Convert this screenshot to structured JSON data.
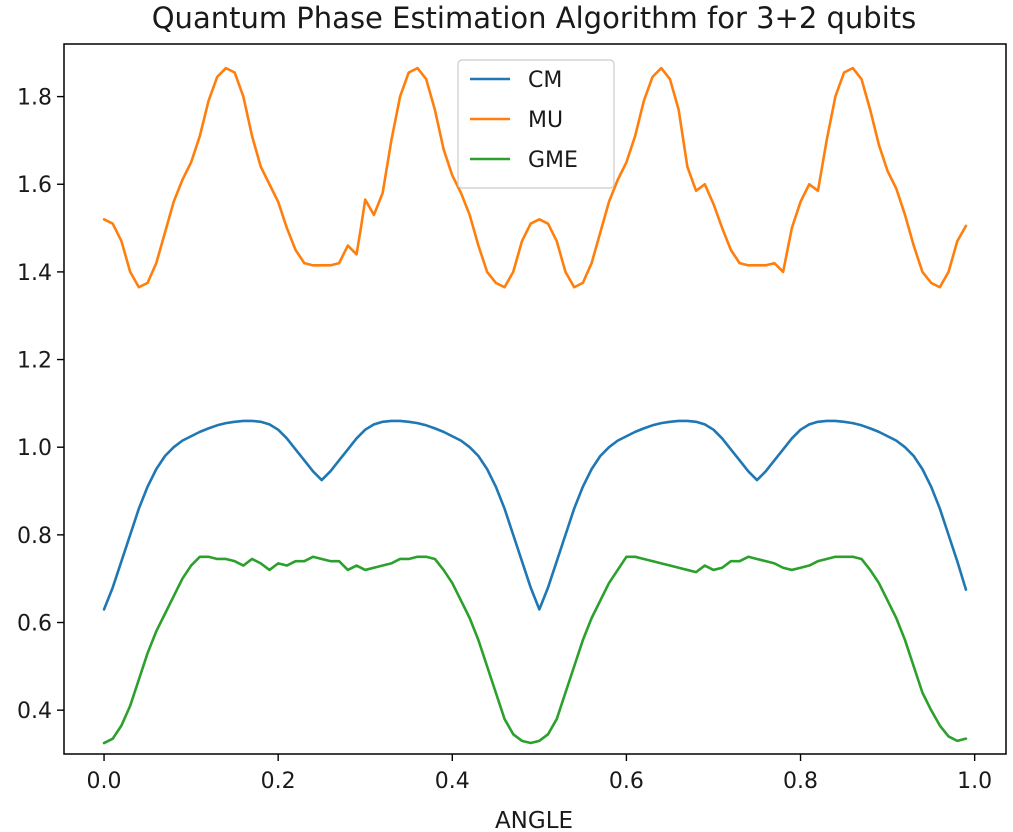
{
  "chart_data": {
    "type": "line",
    "title": "Quantum Phase Estimation Algorithm for 3+2 qubits",
    "xlabel": "ANGLE",
    "ylabel": "",
    "xlim": [
      -0.046,
      1.036
    ],
    "ylim": [
      0.3,
      1.92
    ],
    "xticks": [
      0.0,
      0.2,
      0.4,
      0.6,
      0.8,
      1.0
    ],
    "xtick_labels": [
      "0.0",
      "0.2",
      "0.4",
      "0.6",
      "0.8",
      "1.0"
    ],
    "yticks": [
      0.4,
      0.6,
      0.8,
      1.0,
      1.2,
      1.4,
      1.6,
      1.8
    ],
    "ytick_labels": [
      "0.4",
      "0.6",
      "0.8",
      "1.0",
      "1.2",
      "1.4",
      "1.6",
      "1.8"
    ],
    "grid": false,
    "legend_position": "top-center",
    "series": [
      {
        "name": "CM",
        "color": "#1f77b4",
        "x": [
          0.0,
          0.01,
          0.02,
          0.03,
          0.04,
          0.05,
          0.06,
          0.07,
          0.08,
          0.09,
          0.1,
          0.11,
          0.12,
          0.13,
          0.14,
          0.15,
          0.16,
          0.17,
          0.18,
          0.19,
          0.2,
          0.21,
          0.22,
          0.23,
          0.24,
          0.25,
          0.26,
          0.27,
          0.28,
          0.29,
          0.3,
          0.31,
          0.32,
          0.33,
          0.34,
          0.35,
          0.36,
          0.37,
          0.38,
          0.39,
          0.4,
          0.41,
          0.42,
          0.43,
          0.44,
          0.45,
          0.46,
          0.47,
          0.48,
          0.49,
          0.5,
          0.51,
          0.52,
          0.53,
          0.54,
          0.55,
          0.56,
          0.57,
          0.58,
          0.59,
          0.6,
          0.61,
          0.62,
          0.63,
          0.64,
          0.65,
          0.66,
          0.67,
          0.68,
          0.69,
          0.7,
          0.71,
          0.72,
          0.73,
          0.74,
          0.75,
          0.76,
          0.77,
          0.78,
          0.79,
          0.8,
          0.81,
          0.82,
          0.83,
          0.84,
          0.85,
          0.86,
          0.87,
          0.88,
          0.89,
          0.9,
          0.91,
          0.92,
          0.93,
          0.94,
          0.95,
          0.96,
          0.97,
          0.98,
          0.99
        ],
        "y": [
          0.63,
          0.68,
          0.74,
          0.8,
          0.86,
          0.91,
          0.95,
          0.98,
          1.0,
          1.015,
          1.025,
          1.035,
          1.043,
          1.05,
          1.055,
          1.058,
          1.06,
          1.06,
          1.058,
          1.052,
          1.04,
          1.02,
          0.995,
          0.97,
          0.945,
          0.925,
          0.945,
          0.97,
          0.995,
          1.02,
          1.04,
          1.052,
          1.058,
          1.06,
          1.06,
          1.058,
          1.055,
          1.05,
          1.043,
          1.035,
          1.025,
          1.015,
          1.0,
          0.98,
          0.95,
          0.91,
          0.86,
          0.8,
          0.74,
          0.68,
          0.63,
          0.68,
          0.74,
          0.8,
          0.86,
          0.91,
          0.95,
          0.98,
          1.0,
          1.015,
          1.025,
          1.035,
          1.043,
          1.05,
          1.055,
          1.058,
          1.06,
          1.06,
          1.058,
          1.052,
          1.04,
          1.02,
          0.995,
          0.97,
          0.945,
          0.925,
          0.945,
          0.97,
          0.995,
          1.02,
          1.04,
          1.052,
          1.058,
          1.06,
          1.06,
          1.058,
          1.055,
          1.05,
          1.043,
          1.035,
          1.025,
          1.015,
          1.0,
          0.98,
          0.95,
          0.91,
          0.86,
          0.8,
          0.74,
          0.675
        ]
      },
      {
        "name": "MU",
        "color": "#ff7f0e",
        "x": [
          0.0,
          0.01,
          0.02,
          0.03,
          0.04,
          0.05,
          0.06,
          0.07,
          0.08,
          0.09,
          0.1,
          0.11,
          0.12,
          0.13,
          0.14,
          0.15,
          0.16,
          0.17,
          0.18,
          0.19,
          0.2,
          0.21,
          0.22,
          0.23,
          0.24,
          0.25,
          0.26,
          0.27,
          0.28,
          0.29,
          0.295,
          0.3,
          0.31,
          0.32,
          0.33,
          0.34,
          0.35,
          0.36,
          0.37,
          0.38,
          0.39,
          0.4,
          0.41,
          0.42,
          0.43,
          0.44,
          0.45,
          0.46,
          0.47,
          0.48,
          0.49,
          0.5,
          0.51,
          0.52,
          0.53,
          0.54,
          0.55,
          0.56,
          0.57,
          0.58,
          0.59,
          0.6,
          0.61,
          0.62,
          0.63,
          0.64,
          0.65,
          0.66,
          0.67,
          0.68,
          0.69,
          0.7,
          0.71,
          0.72,
          0.73,
          0.74,
          0.75,
          0.76,
          0.77,
          0.78,
          0.79,
          0.8,
          0.81,
          0.82,
          0.83,
          0.84,
          0.85,
          0.86,
          0.87,
          0.88,
          0.89,
          0.9,
          0.91,
          0.92,
          0.93,
          0.94,
          0.95,
          0.96,
          0.97,
          0.98,
          0.99
        ],
        "y": [
          1.52,
          1.51,
          1.47,
          1.4,
          1.365,
          1.375,
          1.42,
          1.49,
          1.56,
          1.61,
          1.65,
          1.71,
          1.79,
          1.845,
          1.865,
          1.855,
          1.8,
          1.71,
          1.64,
          1.6,
          1.56,
          1.5,
          1.45,
          1.42,
          1.415,
          1.415,
          1.415,
          1.42,
          1.46,
          1.44,
          1.5,
          1.565,
          1.53,
          1.58,
          1.7,
          1.8,
          1.855,
          1.865,
          1.84,
          1.77,
          1.68,
          1.62,
          1.58,
          1.53,
          1.46,
          1.4,
          1.375,
          1.365,
          1.4,
          1.47,
          1.51,
          1.52,
          1.51,
          1.47,
          1.4,
          1.365,
          1.375,
          1.42,
          1.49,
          1.56,
          1.61,
          1.65,
          1.71,
          1.79,
          1.845,
          1.865,
          1.84,
          1.77,
          1.64,
          1.585,
          1.6,
          1.555,
          1.5,
          1.45,
          1.42,
          1.415,
          1.415,
          1.415,
          1.42,
          1.4,
          1.5,
          1.56,
          1.6,
          1.585,
          1.7,
          1.8,
          1.855,
          1.865,
          1.84,
          1.77,
          1.69,
          1.63,
          1.59,
          1.53,
          1.46,
          1.4,
          1.375,
          1.365,
          1.4,
          1.47,
          1.505
        ]
      },
      {
        "name": "GME",
        "color": "#2ca02c",
        "x": [
          0.0,
          0.01,
          0.02,
          0.03,
          0.04,
          0.05,
          0.06,
          0.07,
          0.08,
          0.09,
          0.1,
          0.11,
          0.12,
          0.13,
          0.14,
          0.15,
          0.16,
          0.17,
          0.18,
          0.19,
          0.2,
          0.21,
          0.22,
          0.23,
          0.24,
          0.25,
          0.26,
          0.27,
          0.28,
          0.29,
          0.3,
          0.31,
          0.32,
          0.33,
          0.34,
          0.35,
          0.36,
          0.37,
          0.38,
          0.39,
          0.4,
          0.41,
          0.42,
          0.43,
          0.44,
          0.45,
          0.46,
          0.47,
          0.48,
          0.49,
          0.5,
          0.51,
          0.52,
          0.53,
          0.54,
          0.55,
          0.56,
          0.57,
          0.58,
          0.59,
          0.6,
          0.61,
          0.62,
          0.63,
          0.64,
          0.65,
          0.66,
          0.67,
          0.68,
          0.69,
          0.7,
          0.71,
          0.72,
          0.73,
          0.74,
          0.75,
          0.76,
          0.77,
          0.78,
          0.79,
          0.8,
          0.81,
          0.82,
          0.83,
          0.84,
          0.85,
          0.86,
          0.87,
          0.88,
          0.89,
          0.9,
          0.91,
          0.92,
          0.93,
          0.94,
          0.95,
          0.96,
          0.97,
          0.98,
          0.99
        ],
        "y": [
          0.325,
          0.335,
          0.365,
          0.41,
          0.47,
          0.53,
          0.58,
          0.62,
          0.66,
          0.7,
          0.73,
          0.75,
          0.75,
          0.745,
          0.745,
          0.74,
          0.73,
          0.745,
          0.735,
          0.72,
          0.735,
          0.73,
          0.74,
          0.74,
          0.75,
          0.745,
          0.74,
          0.74,
          0.72,
          0.73,
          0.72,
          0.725,
          0.73,
          0.735,
          0.745,
          0.745,
          0.75,
          0.75,
          0.745,
          0.72,
          0.69,
          0.65,
          0.61,
          0.56,
          0.5,
          0.44,
          0.38,
          0.345,
          0.33,
          0.325,
          0.33,
          0.345,
          0.38,
          0.44,
          0.5,
          0.56,
          0.61,
          0.65,
          0.69,
          0.72,
          0.75,
          0.75,
          0.745,
          0.74,
          0.735,
          0.73,
          0.725,
          0.72,
          0.715,
          0.73,
          0.72,
          0.725,
          0.74,
          0.74,
          0.75,
          0.745,
          0.74,
          0.735,
          0.725,
          0.72,
          0.725,
          0.73,
          0.74,
          0.745,
          0.75,
          0.75,
          0.75,
          0.745,
          0.72,
          0.69,
          0.65,
          0.61,
          0.56,
          0.5,
          0.44,
          0.4,
          0.365,
          0.34,
          0.33,
          0.335
        ]
      }
    ]
  }
}
